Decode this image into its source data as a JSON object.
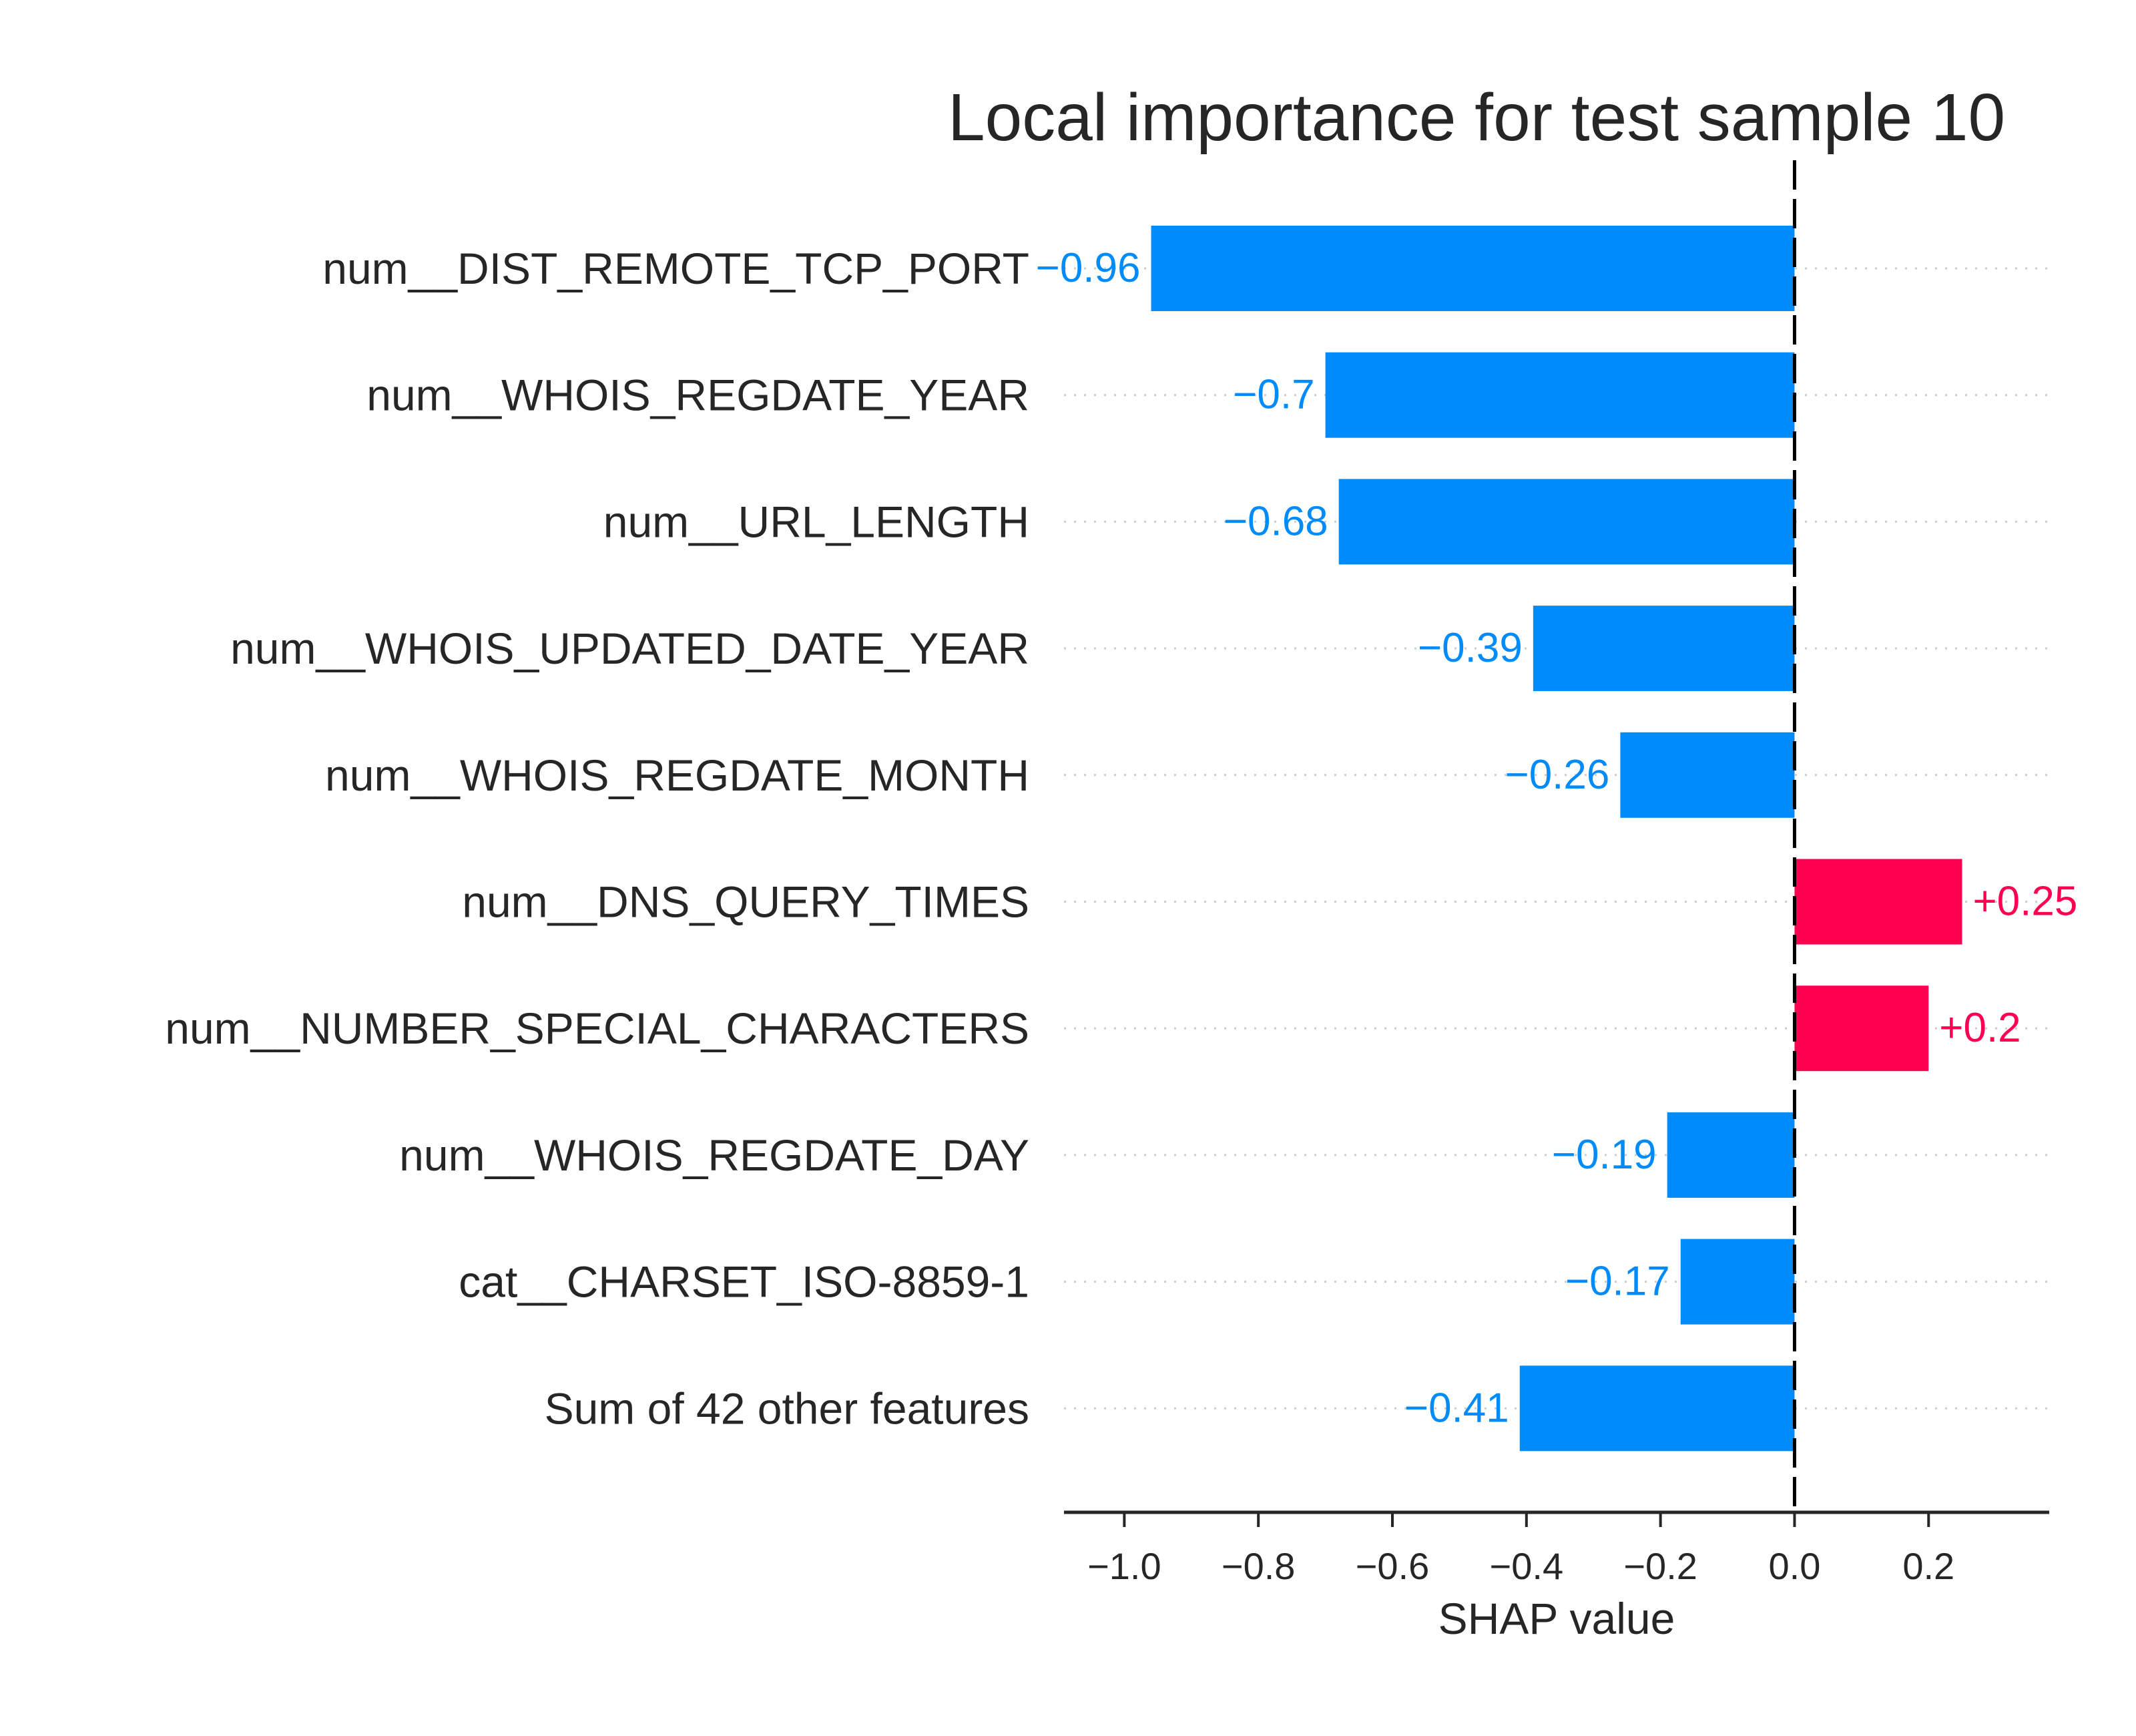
{
  "chart_data": {
    "type": "bar",
    "orientation": "horizontal",
    "title": "Local importance for test sample 10",
    "xlabel": "SHAP value",
    "ylabel": "",
    "xlim": [
      -1.09,
      0.38
    ],
    "xticks": [
      -1.0,
      -0.8,
      -0.6,
      -0.4,
      -0.2,
      0.0,
      0.2
    ],
    "xtick_labels": [
      "−1.0",
      "−0.8",
      "−0.6",
      "−0.4",
      "−0.2",
      "0.0",
      "0.2"
    ],
    "categories": [
      "num__DIST_REMOTE_TCP_PORT",
      "num__WHOIS_REGDATE_YEAR",
      "num__URL_LENGTH",
      "num__WHOIS_UPDATED_DATE_YEAR",
      "num__WHOIS_REGDATE_MONTH",
      "num__DNS_QUERY_TIMES",
      "num__NUMBER_SPECIAL_CHARACTERS",
      "num__WHOIS_REGDATE_DAY",
      "cat__CHARSET_ISO-8859-1",
      "Sum of 42 other features"
    ],
    "values": [
      -0.96,
      -0.7,
      -0.68,
      -0.39,
      -0.26,
      0.25,
      0.2,
      -0.19,
      -0.17,
      -0.41
    ],
    "value_labels": [
      "−0.96",
      "−0.7",
      "−0.68",
      "−0.39",
      "−0.26",
      "+0.25",
      "+0.2",
      "−0.19",
      "−0.17",
      "−0.41"
    ],
    "colors": {
      "negative": "#008bfb",
      "positive": "#ff0051",
      "axis": "#262626",
      "grid": "#cccccc",
      "zero_line": "#000000"
    },
    "grid": "horizontal dotted",
    "legend": "none"
  }
}
